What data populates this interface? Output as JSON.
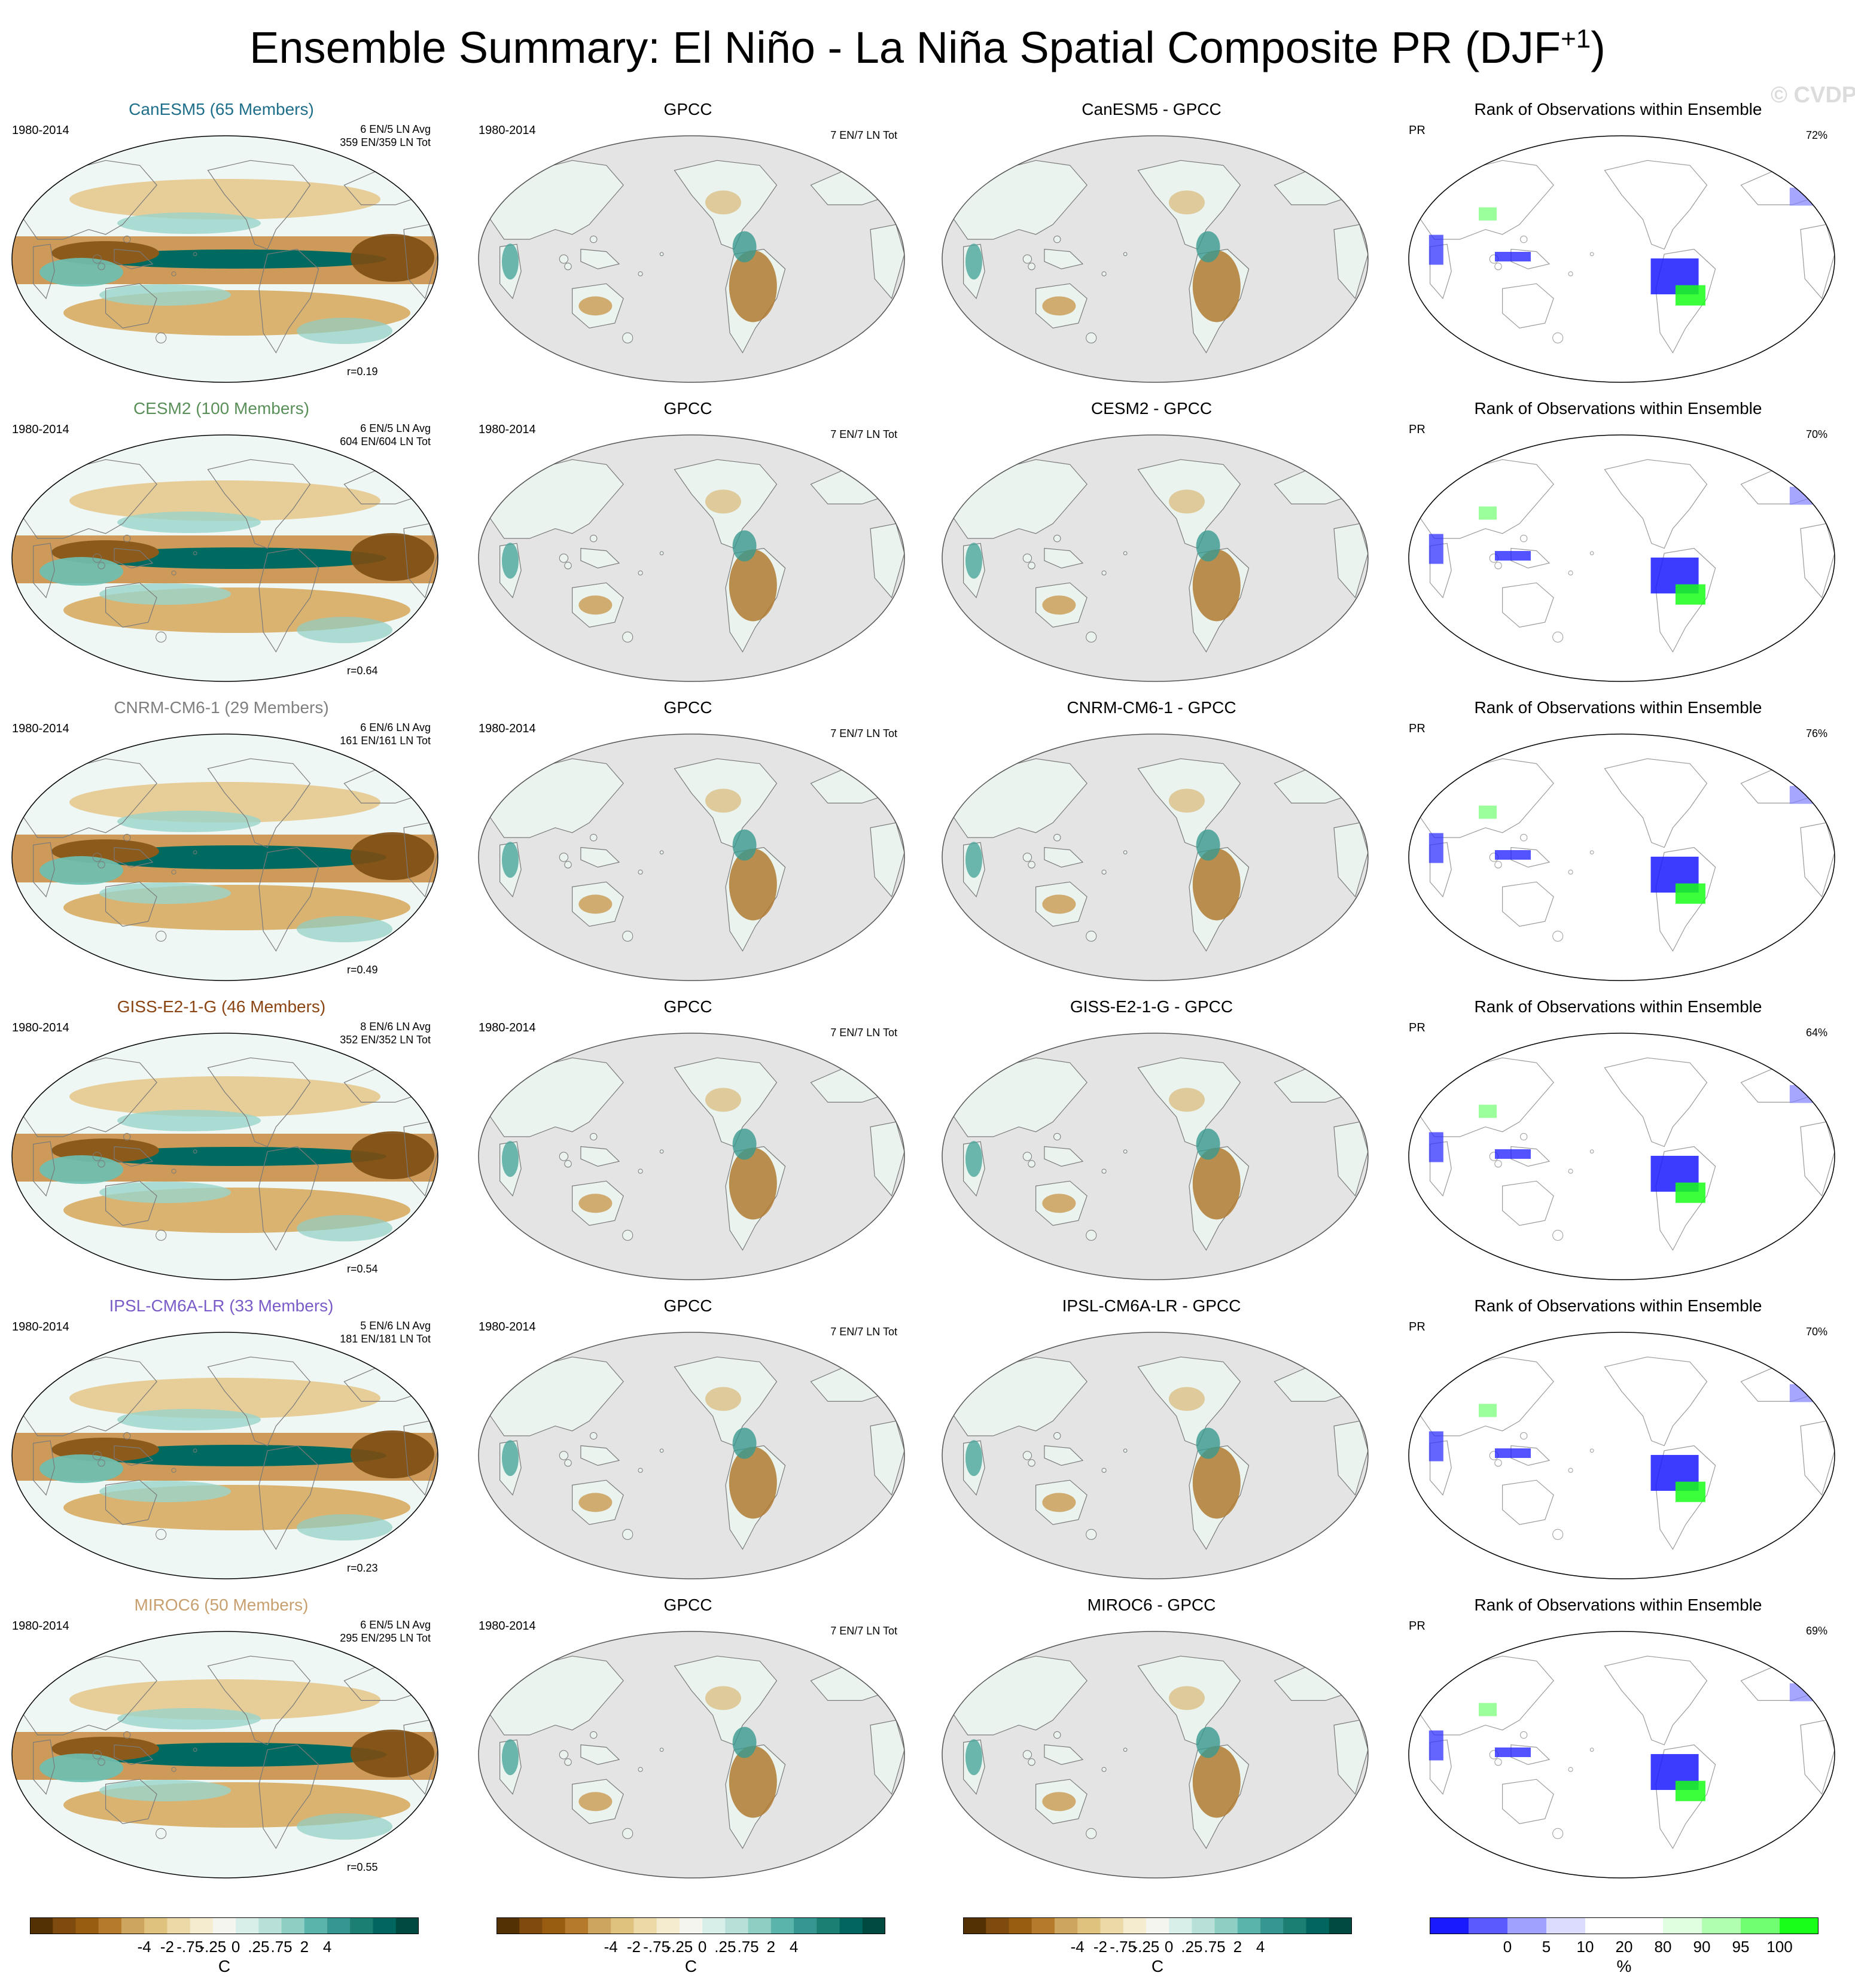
{
  "title": "Ensemble Summary: El Niño - La Niña Spatial Composite PR (DJF",
  "title_superscript": "+1",
  "title_suffix": ")",
  "watermark": "© CVDP-LE",
  "colors": {
    "CanESM5": "#1f6f8b",
    "CESM2": "#5a8f5a",
    "CNRM-CM6-1": "#7f7f7f",
    "GISS-E2-1-G": "#8b4513",
    "IPSL-CM6A-LR": "#7a5cc8",
    "MIROC6": "#c8a070"
  },
  "rows": [
    {
      "model": {
        "title": "CanESM5 (65 Members)",
        "period": "1980-2014",
        "stats1": "6 EN/5 LN Avg",
        "stats2": "359 EN/359 LN Tot",
        "corr": "r=0.19"
      },
      "obs": {
        "title": "GPCC",
        "period": "1980-2014",
        "stats": "7 EN/7 LN Tot"
      },
      "diff": {
        "title": "CanESM5 - GPCC"
      },
      "rank": {
        "title": "Rank of Observations within Ensemble",
        "var": "PR",
        "pct": "72%"
      }
    },
    {
      "model": {
        "title": "CESM2 (100 Members)",
        "period": "1980-2014",
        "stats1": "6 EN/5 LN Avg",
        "stats2": "604 EN/604 LN Tot",
        "corr": "r=0.64"
      },
      "obs": {
        "title": "GPCC",
        "period": "1980-2014",
        "stats": "7 EN/7 LN Tot"
      },
      "diff": {
        "title": "CESM2 - GPCC"
      },
      "rank": {
        "title": "Rank of Observations within Ensemble",
        "var": "PR",
        "pct": "70%"
      }
    },
    {
      "model": {
        "title": "CNRM-CM6-1 (29 Members)",
        "period": "1980-2014",
        "stats1": "6 EN/6 LN Avg",
        "stats2": "161 EN/161 LN Tot",
        "corr": "r=0.49"
      },
      "obs": {
        "title": "GPCC",
        "period": "1980-2014",
        "stats": "7 EN/7 LN Tot"
      },
      "diff": {
        "title": "CNRM-CM6-1 - GPCC"
      },
      "rank": {
        "title": "Rank of Observations within Ensemble",
        "var": "PR",
        "pct": "76%"
      }
    },
    {
      "model": {
        "title": "GISS-E2-1-G (46 Members)",
        "period": "1980-2014",
        "stats1": "8 EN/6 LN Avg",
        "stats2": "352 EN/352 LN Tot",
        "corr": "r=0.54"
      },
      "obs": {
        "title": "GPCC",
        "period": "1980-2014",
        "stats": "7 EN/7 LN Tot"
      },
      "diff": {
        "title": "GISS-E2-1-G - GPCC"
      },
      "rank": {
        "title": "Rank of Observations within Ensemble",
        "var": "PR",
        "pct": "64%"
      }
    },
    {
      "model": {
        "title": "IPSL-CM6A-LR (33 Members)",
        "period": "1980-2014",
        "stats1": "5 EN/6 LN Avg",
        "stats2": "181 EN/181 LN Tot",
        "corr": "r=0.23"
      },
      "obs": {
        "title": "GPCC",
        "period": "1980-2014",
        "stats": "7 EN/7 LN Tot"
      },
      "diff": {
        "title": "IPSL-CM6A-LR - GPCC"
      },
      "rank": {
        "title": "Rank of Observations within Ensemble",
        "var": "PR",
        "pct": "70%"
      }
    },
    {
      "model": {
        "title": "MIROC6 (50 Members)",
        "period": "1980-2014",
        "stats1": "6 EN/5 LN Avg",
        "stats2": "295 EN/295 LN Tot",
        "corr": "r=0.55"
      },
      "obs": {
        "title": "GPCC",
        "period": "1980-2014",
        "stats": "7 EN/7 LN Tot"
      },
      "diff": {
        "title": "MIROC6 - GPCC"
      },
      "rank": {
        "title": "Rank of Observations within Ensemble",
        "var": "PR",
        "pct": "69%"
      }
    }
  ],
  "colorbars": [
    {
      "unit": "C",
      "ticks": [
        "-4",
        "-2",
        "-.75",
        "-.25",
        "0",
        ".25",
        ".75",
        "2",
        "4"
      ],
      "colors": [
        "#543005",
        "#7f4a0d",
        "#995d12",
        "#b57a2b",
        "#cea55f",
        "#dfc27d",
        "#ebd9a8",
        "#f5ebcf",
        "#f5f5f0",
        "#d8eee9",
        "#b8e0d8",
        "#8ecfc4",
        "#5ab4ac",
        "#35978f",
        "#1b7f74",
        "#01665e",
        "#014a41"
      ]
    },
    {
      "unit": "C",
      "ticks": [
        "-4",
        "-2",
        "-.75",
        "-.25",
        "0",
        ".25",
        ".75",
        "2",
        "4"
      ],
      "colors": [
        "#543005",
        "#7f4a0d",
        "#995d12",
        "#b57a2b",
        "#cea55f",
        "#dfc27d",
        "#ebd9a8",
        "#f5ebcf",
        "#f5f5f0",
        "#d8eee9",
        "#b8e0d8",
        "#8ecfc4",
        "#5ab4ac",
        "#35978f",
        "#1b7f74",
        "#01665e",
        "#014a41"
      ]
    },
    {
      "unit": "C",
      "ticks": [
        "-4",
        "-2",
        "-.75",
        "-.25",
        "0",
        ".25",
        ".75",
        "2",
        "4"
      ],
      "colors": [
        "#543005",
        "#7f4a0d",
        "#995d12",
        "#b57a2b",
        "#cea55f",
        "#dfc27d",
        "#ebd9a8",
        "#f5ebcf",
        "#f5f5f0",
        "#d8eee9",
        "#b8e0d8",
        "#8ecfc4",
        "#5ab4ac",
        "#35978f",
        "#1b7f74",
        "#01665e",
        "#014a41"
      ]
    },
    {
      "unit": "%",
      "ticks": [
        "0",
        "5",
        "10",
        "20",
        "80",
        "90",
        "95",
        "100"
      ],
      "colors": [
        "#1a1aff",
        "#5a5aff",
        "#a0a0ff",
        "#dcdcff",
        "#ffffff",
        "#ffffff",
        "#e0ffe0",
        "#b0ffb0",
        "#70ff70",
        "#18ff18"
      ]
    }
  ]
}
